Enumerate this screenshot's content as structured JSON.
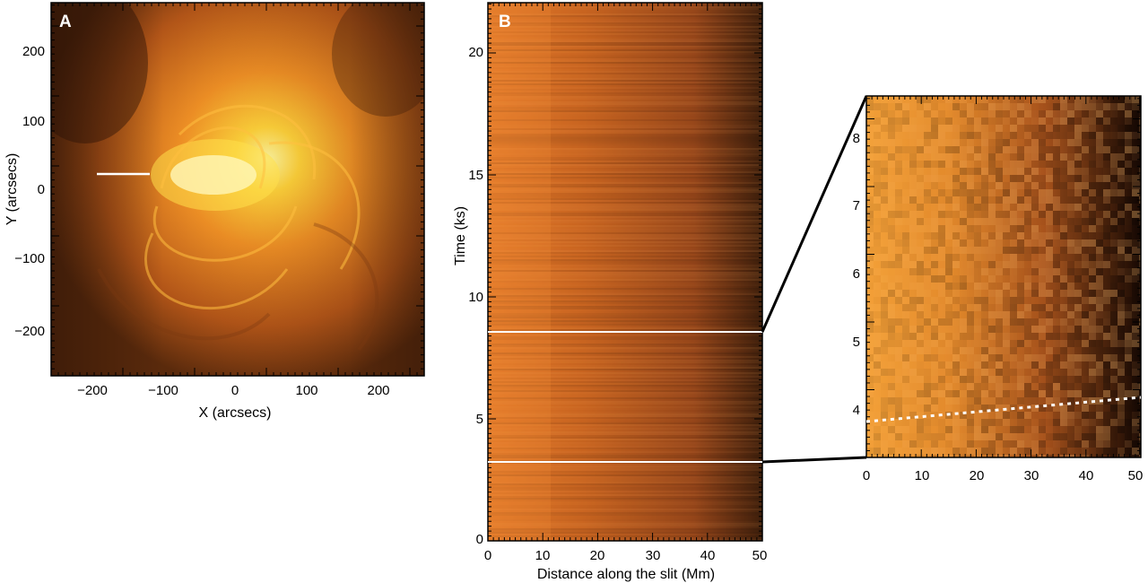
{
  "panel_a": {
    "label": "A",
    "xlabel": "X (arcsecs)",
    "ylabel": "Y (arcsecs)",
    "xticks": [
      "−200",
      "−100",
      "0",
      "100",
      "200"
    ],
    "yticks": [
      "200",
      "100",
      "0",
      "−100",
      "−200"
    ]
  },
  "panel_b": {
    "label": "B",
    "xlabel": "Distance along the slit (Mm)",
    "ylabel": "Time (ks)",
    "xticks": [
      "0",
      "10",
      "20",
      "30",
      "40",
      "50"
    ],
    "yticks": [
      "20",
      "15",
      "10",
      "5",
      "0"
    ]
  },
  "panel_c": {
    "xticks": [
      "0",
      "10",
      "20",
      "30",
      "40",
      "50"
    ],
    "yticks": [
      "8",
      "7",
      "6",
      "5",
      "4"
    ]
  },
  "colors": {
    "bright": "#ffe04a",
    "mid": "#d9681a",
    "dark": "#3a1a08",
    "marker": "#ffffff"
  }
}
